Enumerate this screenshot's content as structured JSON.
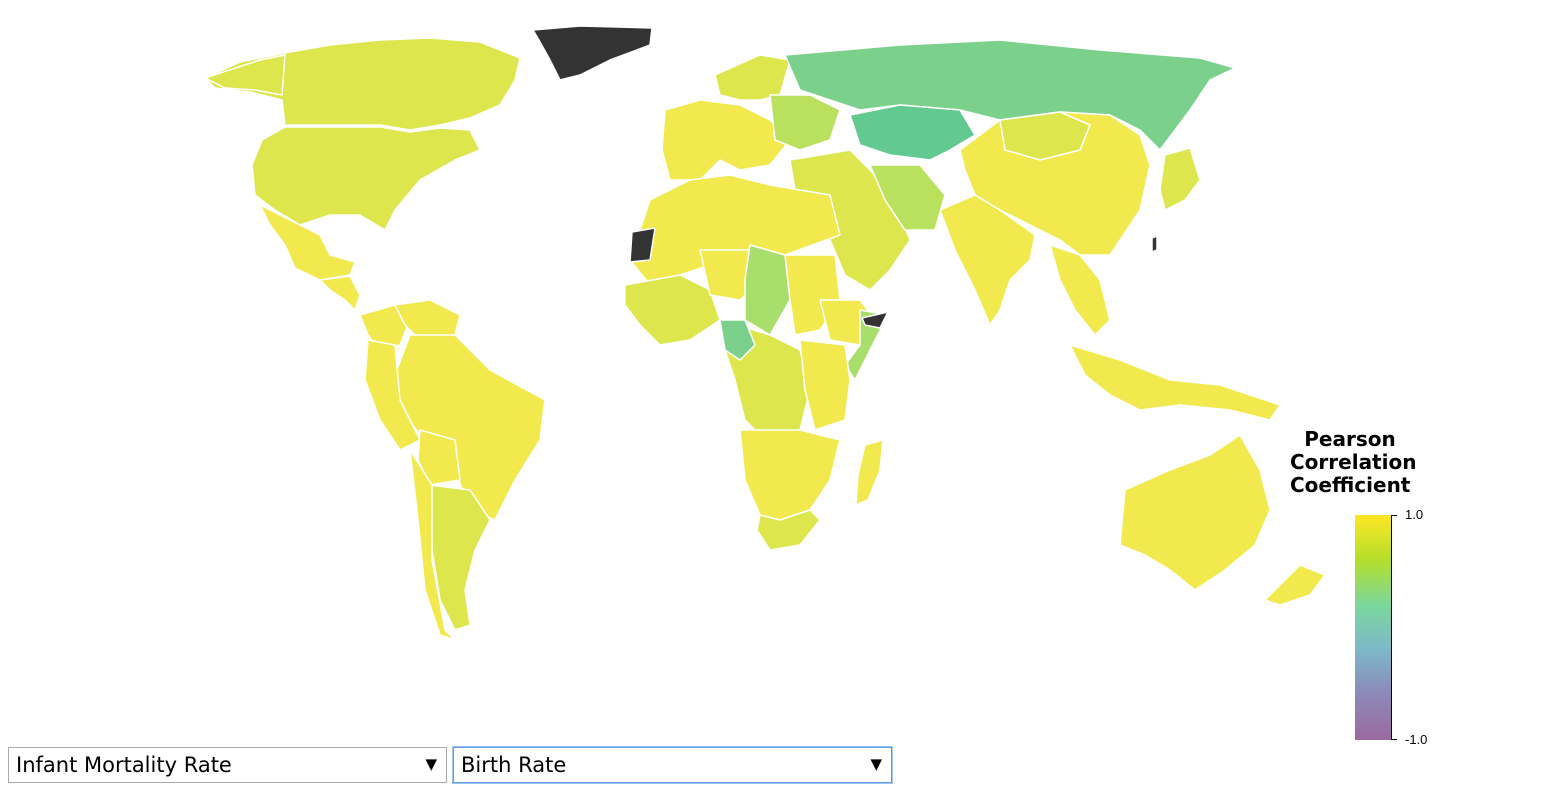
{
  "legend": {
    "title_lines": [
      "Pearson",
      "Correlation",
      "Coefficient"
    ],
    "max_label": "1.0",
    "min_label": "-1.0",
    "color_stops": [
      "#fde725",
      "#b5de2b",
      "#7ad79c",
      "#7db8c9",
      "#8c88b8",
      "#9c6aa0"
    ]
  },
  "controls": {
    "x_variable": {
      "selected": "Infant Mortality Rate",
      "caret": "▼"
    },
    "y_variable": {
      "selected": "Birth Rate",
      "caret": "▼"
    }
  },
  "colors": {
    "yellow": "#f2e94e",
    "yellow_light": "#efe94c",
    "yellow_green": "#dde64c",
    "light_green": "#b9e15e",
    "green": "#a8de6b",
    "teal_green": "#7bd18b",
    "teal": "#62c990",
    "no_data": "#333333"
  },
  "countries": [
    {
      "name": "Canada",
      "color": "yellow_green"
    },
    {
      "name": "USA",
      "color": "yellow_green"
    },
    {
      "name": "Alaska",
      "color": "yellow_green"
    },
    {
      "name": "Greenland",
      "color": "no_data"
    },
    {
      "name": "Mexico",
      "color": "yellow"
    },
    {
      "name": "Central America",
      "color": "yellow"
    },
    {
      "name": "Colombia",
      "color": "yellow"
    },
    {
      "name": "Venezuela",
      "color": "yellow"
    },
    {
      "name": "Brazil",
      "color": "yellow"
    },
    {
      "name": "Peru",
      "color": "yellow"
    },
    {
      "name": "Bolivia",
      "color": "yellow"
    },
    {
      "name": "Argentina",
      "color": "yellow_green"
    },
    {
      "name": "Chile",
      "color": "yellow"
    },
    {
      "name": "Europe",
      "color": "yellow"
    },
    {
      "name": "Scandinavia",
      "color": "yellow_green"
    },
    {
      "name": "Eastern Europe",
      "color": "light_green"
    },
    {
      "name": "Russia",
      "color": "teal_green"
    },
    {
      "name": "Kazakhstan",
      "color": "teal"
    },
    {
      "name": "China",
      "color": "yellow"
    },
    {
      "name": "Mongolia",
      "color": "yellow_green"
    },
    {
      "name": "India",
      "color": "yellow"
    },
    {
      "name": "Middle East",
      "color": "yellow_green"
    },
    {
      "name": "Iran",
      "color": "light_green"
    },
    {
      "name": "Southeast Asia",
      "color": "yellow"
    },
    {
      "name": "Japan",
      "color": "yellow_green"
    },
    {
      "name": "Indonesia",
      "color": "yellow"
    },
    {
      "name": "Australia",
      "color": "yellow"
    },
    {
      "name": "New Zealand",
      "color": "yellow"
    },
    {
      "name": "North Africa",
      "color": "yellow"
    },
    {
      "name": "West Africa",
      "color": "yellow_green"
    },
    {
      "name": "Niger",
      "color": "yellow"
    },
    {
      "name": "Chad",
      "color": "green"
    },
    {
      "name": "Sudan",
      "color": "yellow"
    },
    {
      "name": "Ethiopia",
      "color": "yellow"
    },
    {
      "name": "Somalia",
      "color": "green"
    },
    {
      "name": "Somaliland",
      "color": "no_data"
    },
    {
      "name": "Western Sahara",
      "color": "no_data"
    },
    {
      "name": "Central Africa",
      "color": "yellow_green"
    },
    {
      "name": "Cameroon",
      "color": "teal_green"
    },
    {
      "name": "East Africa",
      "color": "yellow"
    },
    {
      "name": "Southern Africa",
      "color": "yellow"
    },
    {
      "name": "South Africa",
      "color": "yellow_green"
    },
    {
      "name": "Madagascar",
      "color": "yellow"
    },
    {
      "name": "Taiwan",
      "color": "no_data"
    }
  ]
}
